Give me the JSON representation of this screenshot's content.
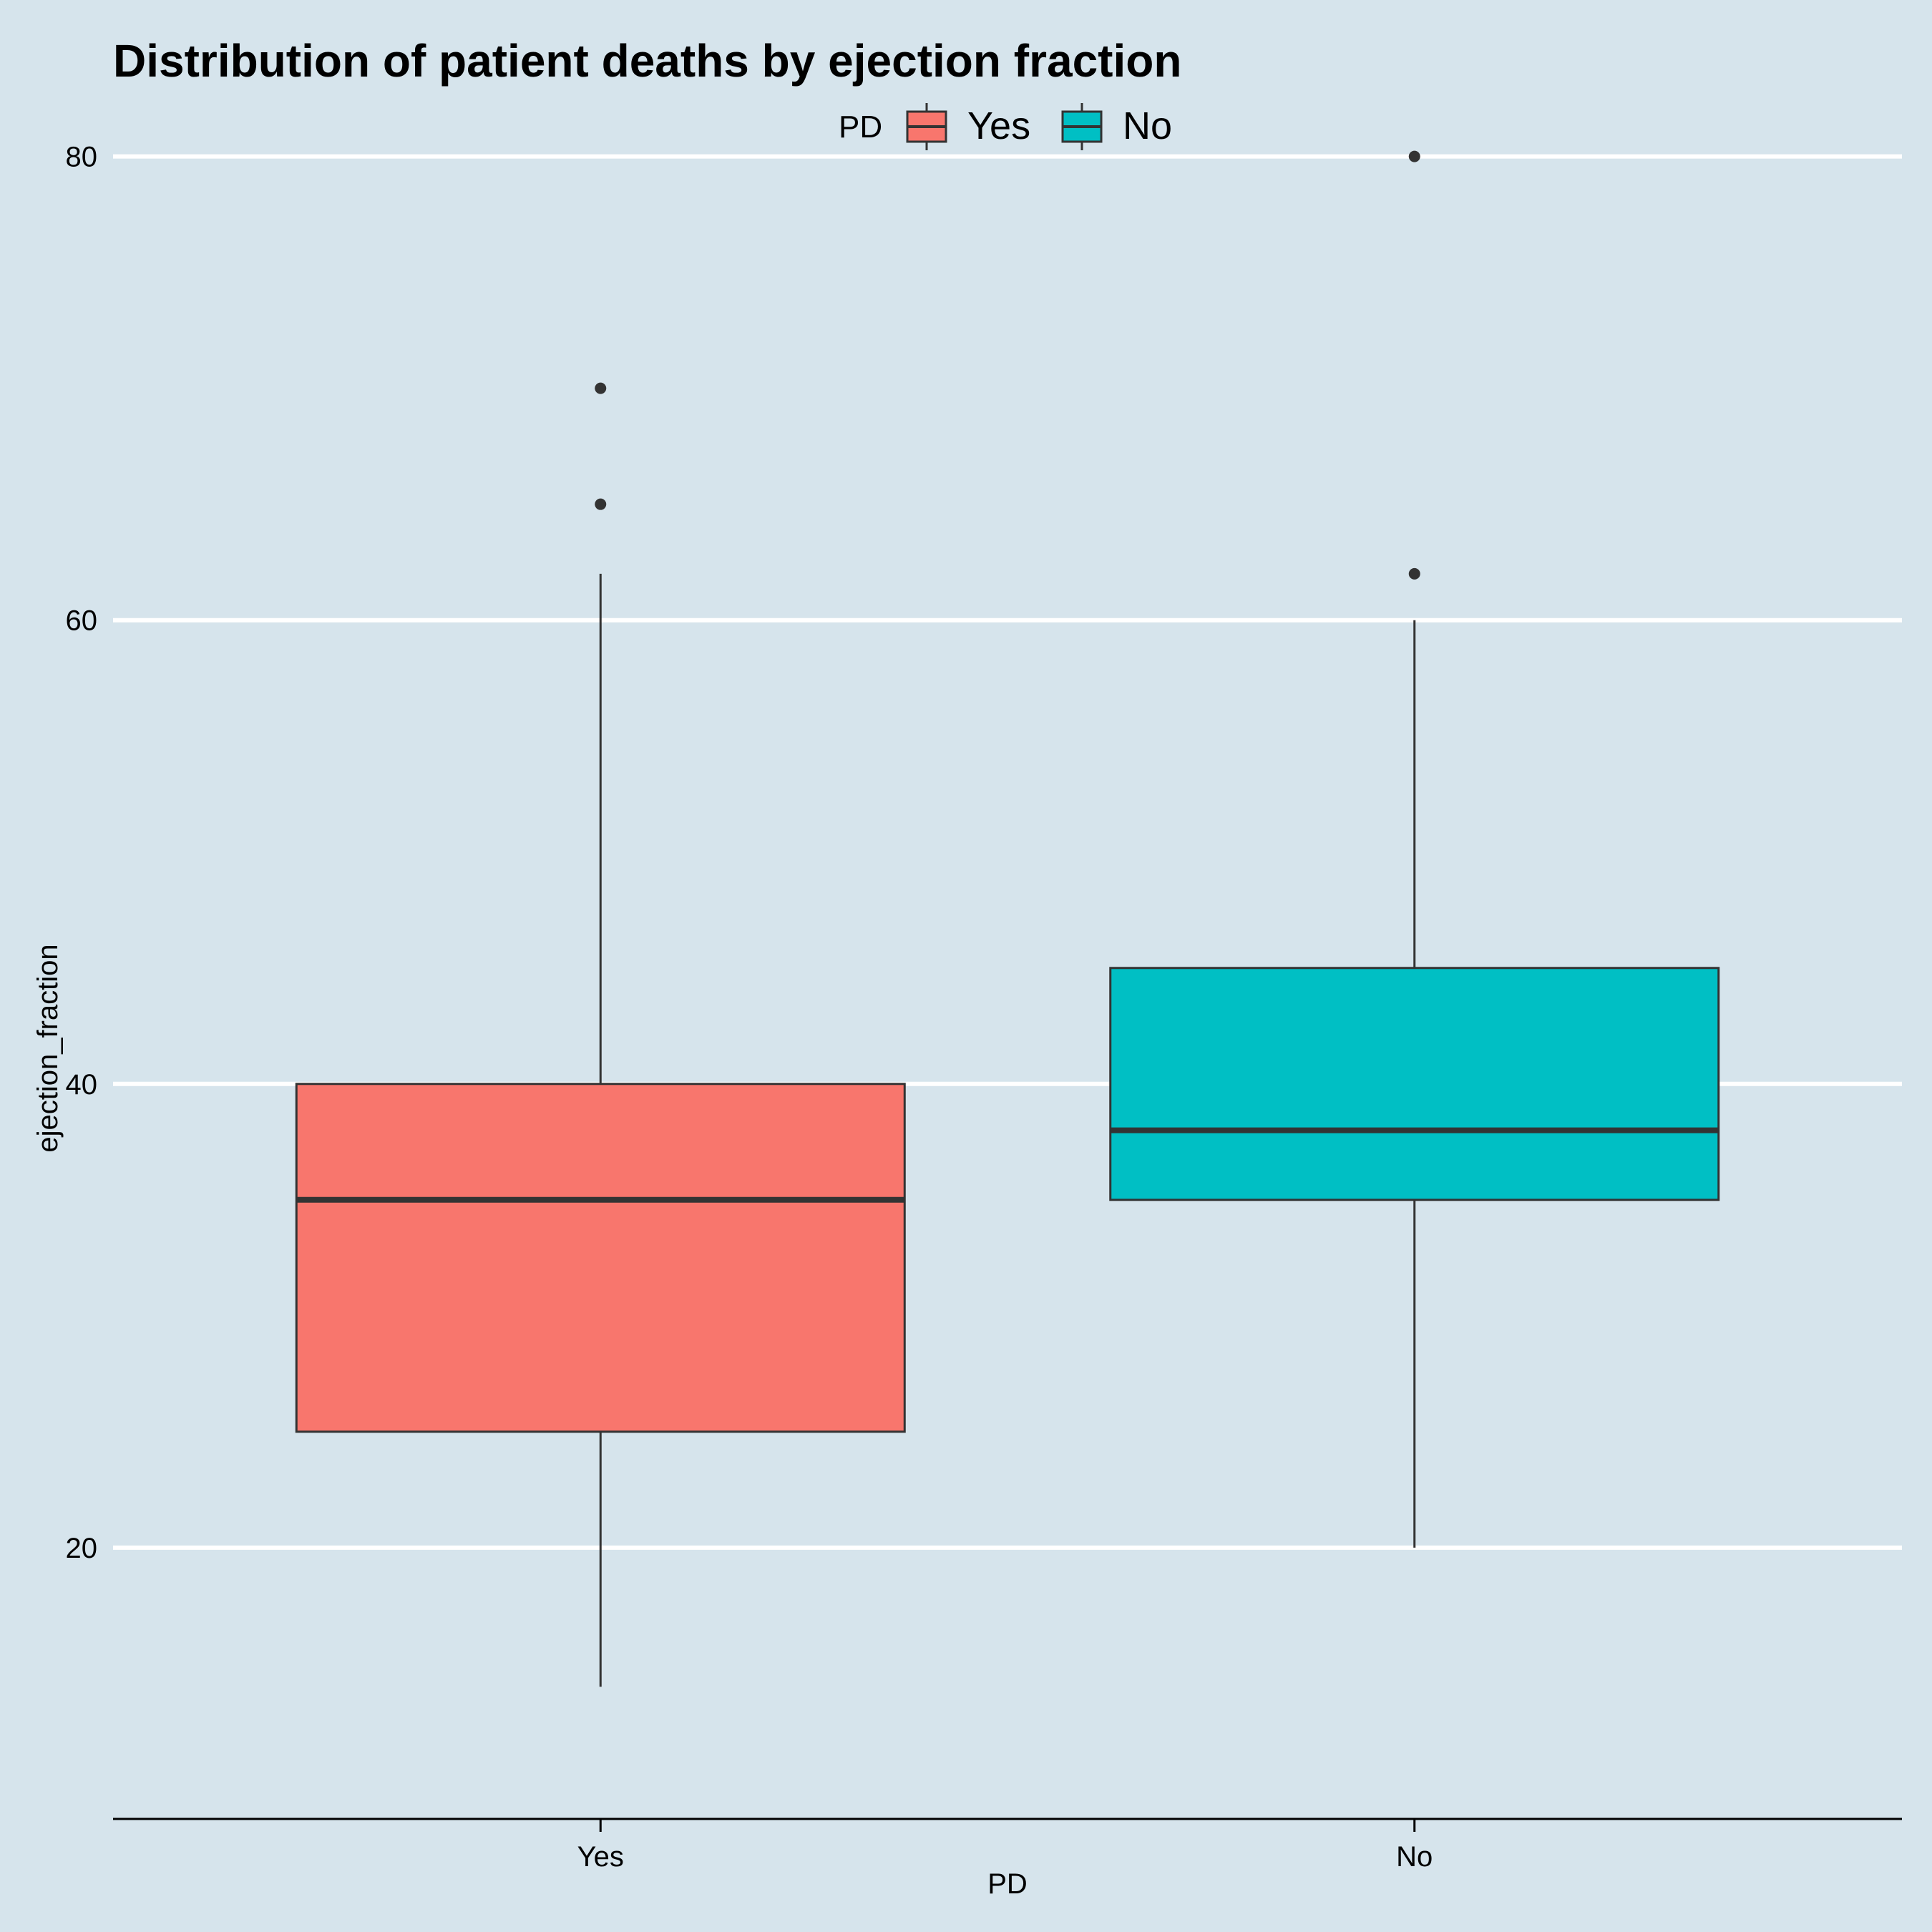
{
  "chart_data": {
    "type": "boxplot",
    "title": "Distribution of patient deaths by ejection fraction",
    "xlabel": "PD",
    "ylabel": "ejection_fraction",
    "ylim": [
      8.3,
      81.5
    ],
    "yticks": [
      20,
      40,
      60,
      80
    ],
    "ytick_labels": [
      "20",
      "40",
      "60",
      "80"
    ],
    "grid": "horizontal major lines",
    "legend": {
      "title": "PD",
      "position": "top",
      "entries": [
        "Yes",
        "No"
      ]
    },
    "categories": [
      "Yes",
      "No"
    ],
    "series": [
      {
        "name": "Yes",
        "color": "#f8766d",
        "whisker_low": 14,
        "q1": 25,
        "median": 35,
        "q3": 40,
        "whisker_high": 62,
        "outliers": [
          65,
          70
        ]
      },
      {
        "name": "No",
        "color": "#00bfc4",
        "whisker_low": 20,
        "q1": 35,
        "median": 38,
        "q3": 45,
        "whisker_high": 60,
        "outliers": [
          62,
          80
        ]
      }
    ]
  },
  "colors": {
    "background": "#d6e4ec",
    "gridline": "#ffffff",
    "outline": "#333333"
  }
}
